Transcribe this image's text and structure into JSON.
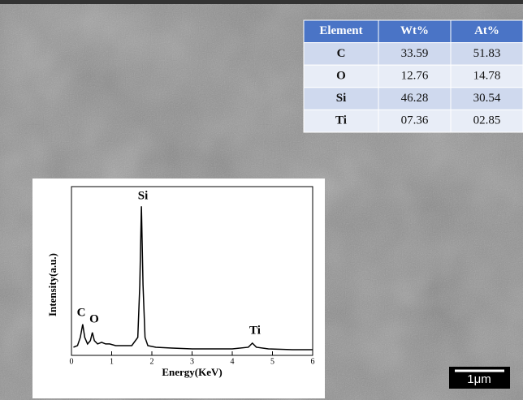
{
  "table": {
    "header": [
      "Element",
      "Wt%",
      "At%"
    ],
    "rows": [
      [
        "C",
        "33.59",
        "51.83"
      ],
      [
        "O",
        "12.76",
        "14.78"
      ],
      [
        "Si",
        "46.28",
        "30.54"
      ],
      [
        "Ti",
        "07.36",
        "02.85"
      ]
    ]
  },
  "chart_data": {
    "type": "line",
    "x_label": "Energy(KeV)",
    "y_label": "Intensity(a.u.)",
    "x": [
      0.05,
      0.15,
      0.22,
      0.28,
      0.33,
      0.4,
      0.47,
      0.52,
      0.57,
      0.65,
      0.75,
      0.85,
      0.95,
      1.1,
      1.3,
      1.5,
      1.65,
      1.7,
      1.74,
      1.78,
      1.83,
      1.9,
      2.1,
      2.5,
      3,
      3.5,
      4,
      4.4,
      4.5,
      4.6,
      4.9,
      5.5,
      6
    ],
    "values": [
      2,
      3,
      8,
      16,
      8,
      4,
      6,
      11,
      6,
      4,
      5,
      4,
      4,
      3,
      3,
      3,
      8,
      40,
      88,
      40,
      8,
      3,
      2,
      1.5,
      1,
      1,
      1,
      2,
      4.5,
      2,
      1,
      0.5,
      0.5
    ],
    "color": "#000000",
    "xlim": [
      0,
      6
    ],
    "xticks": [
      0,
      1,
      2,
      3,
      4,
      5,
      6
    ],
    "ylim": [
      0,
      100
    ],
    "peak_labels": [
      "C",
      "O",
      "Si",
      "Ti"
    ]
  },
  "scale_bar": "1μm"
}
